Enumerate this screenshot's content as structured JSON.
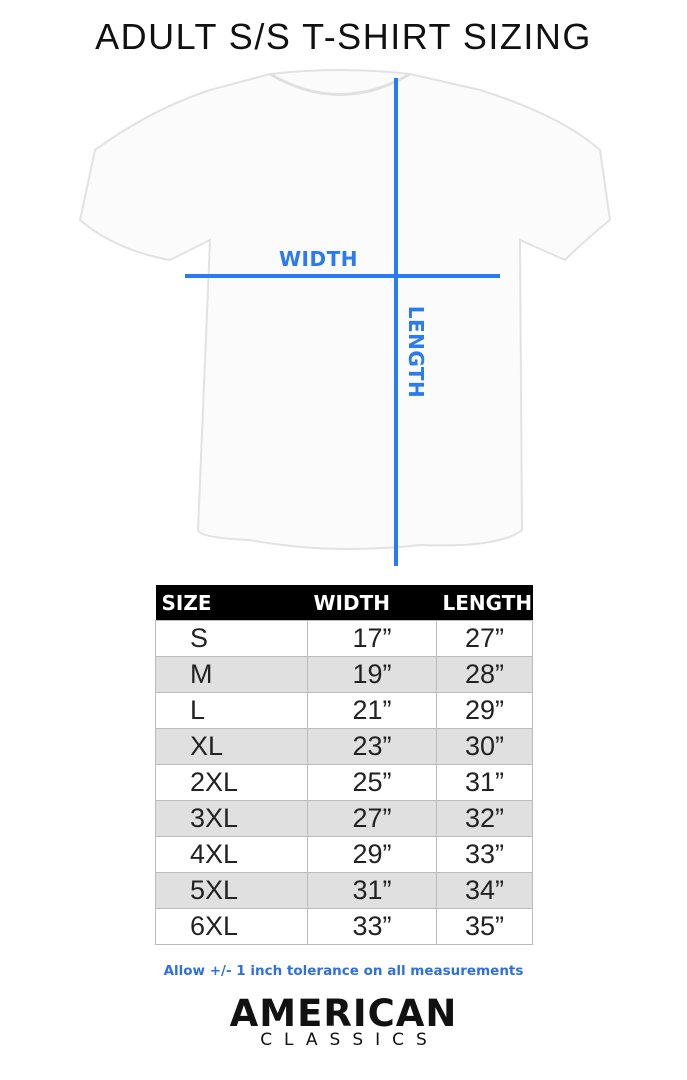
{
  "title": "ADULT S/S T-SHIRT SIZING",
  "diagram": {
    "width_label": "WIDTH",
    "length_label": "LENGTH",
    "line_color": "#2a7bf0"
  },
  "table": {
    "headers": [
      "SIZE",
      "WIDTH",
      "LENGTH"
    ],
    "rows": [
      [
        "S",
        "17”",
        "27”"
      ],
      [
        "M",
        "19”",
        "28”"
      ],
      [
        "L",
        "21”",
        "29”"
      ],
      [
        "XL",
        "23”",
        "30”"
      ],
      [
        "2XL",
        "25”",
        "31”"
      ],
      [
        "3XL",
        "27”",
        "32”"
      ],
      [
        "4XL",
        "29”",
        "33”"
      ],
      [
        "5XL",
        "31”",
        "34”"
      ],
      [
        "6XL",
        "33”",
        "35”"
      ]
    ]
  },
  "note": "Allow +/- 1 inch tolerance on all measurements",
  "logo": {
    "line1": "AMERICAN",
    "line2": "CLASSICS"
  }
}
